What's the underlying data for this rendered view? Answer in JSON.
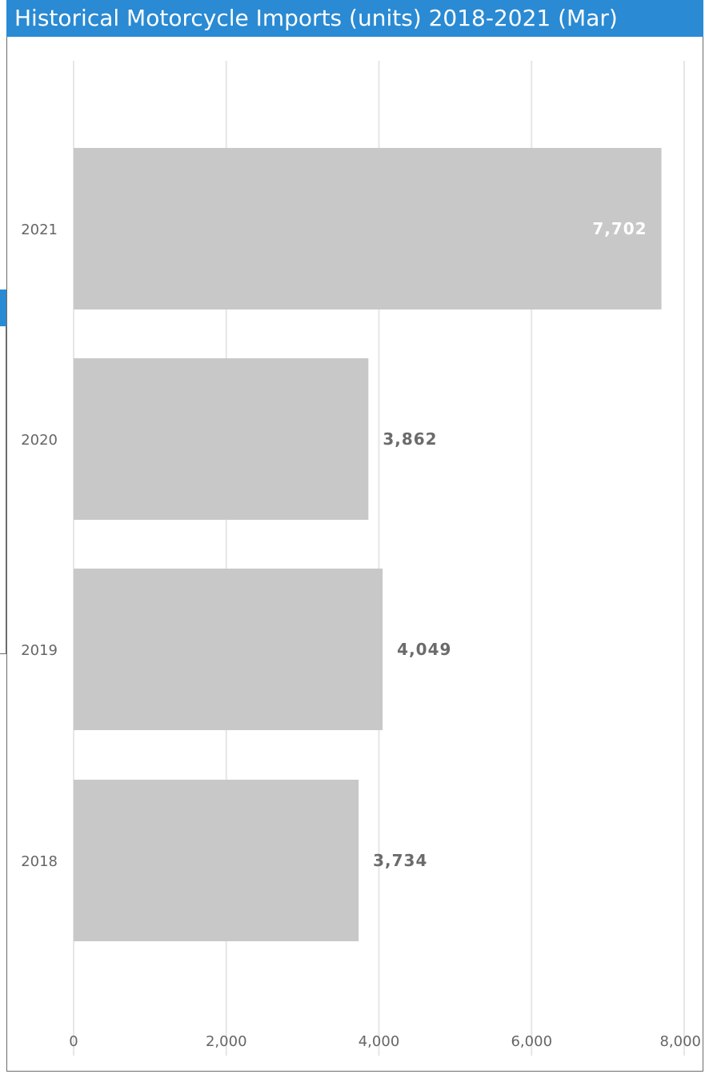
{
  "chart_data": {
    "type": "bar",
    "orientation": "horizontal",
    "title": "Historical Motorcycle Imports (units) 2018-2021 (Mar)",
    "categories": [
      "2021",
      "2020",
      "2019",
      "2018"
    ],
    "values": [
      7702,
      3862,
      4049,
      3734
    ],
    "data_labels": [
      "7,702",
      "3,862",
      "4,049",
      "3,734"
    ],
    "xlim": [
      0,
      8000
    ],
    "xticks": [
      0,
      2000,
      4000,
      6000,
      8000
    ],
    "xtick_labels": [
      "0",
      "2,000",
      "4,000",
      "6,000",
      "8,000"
    ],
    "grid": true,
    "colors": {
      "bar": "#c8c8c8",
      "title_bg": "#2a8ad3",
      "title_text": "#ffffff",
      "label_inside": "#ffffff",
      "label_outside": "#6b6b6b",
      "gridline": "#e6e6e6",
      "axis_text": "#666666"
    }
  }
}
